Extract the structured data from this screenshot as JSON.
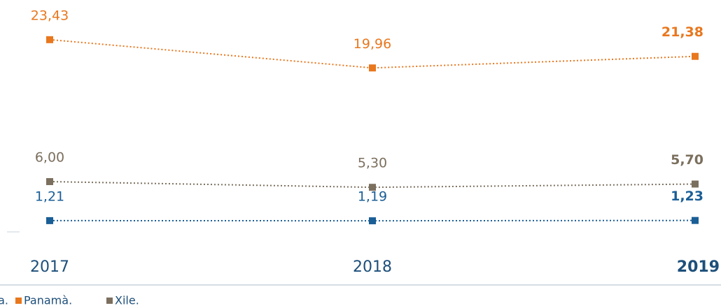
{
  "chart_data": {
    "type": "line",
    "categories": [
      "2017",
      "2018",
      "2019"
    ],
    "ylim": [
      0,
      25
    ],
    "series": [
      {
        "name": "a.",
        "color": "#1a5e96",
        "values": [
          1.21,
          1.19,
          1.23
        ],
        "value_labels": [
          "1,21",
          "1,19",
          "1,23"
        ]
      },
      {
        "name": "Panamà.",
        "color": "#e8771e",
        "values": [
          23.43,
          19.96,
          21.38
        ],
        "value_labels": [
          "23,43",
          "19,96",
          "21,38"
        ]
      },
      {
        "name": "Xile.",
        "color": "#7b6f5e",
        "values": [
          6.0,
          5.3,
          5.7
        ],
        "value_labels": [
          "6,00",
          "5,30",
          "5,70"
        ]
      }
    ],
    "legend": "bottom-left"
  }
}
